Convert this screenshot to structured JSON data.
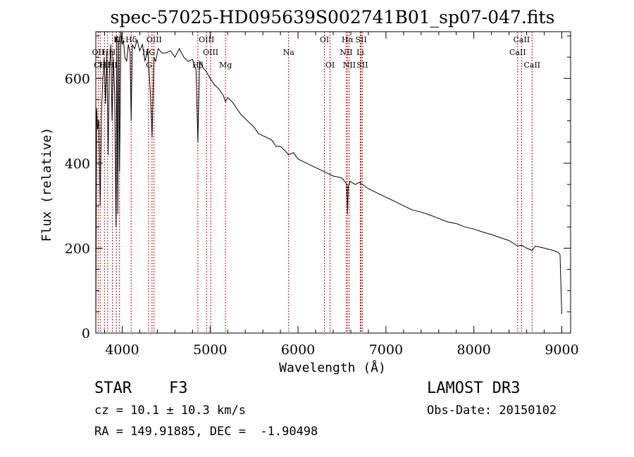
{
  "chart_data": {
    "type": "line",
    "title": "spec-57025-HD095639S002741B01_sp07-047.fits",
    "xlabel": "Wavelength (Å)",
    "ylabel": "Flux (relative)",
    "xlim": [
      3700,
      9100
    ],
    "ylim": [
      0,
      710
    ],
    "xticks": [
      4000,
      5000,
      6000,
      7000,
      8000,
      9000
    ],
    "xtick_labels": [
      "4000",
      "5000",
      "6000",
      "7000",
      "8000",
      "9000"
    ],
    "yticks": [
      0,
      200,
      400,
      600
    ],
    "ytick_labels": [
      "0",
      "200",
      "400",
      "600"
    ],
    "grid": false,
    "series": [
      {
        "name": "spectrum",
        "x": [
          3700,
          3710,
          3720,
          3735,
          3750,
          3765,
          3780,
          3795,
          3810,
          3825,
          3840,
          3855,
          3870,
          3885,
          3900,
          3915,
          3930,
          3940,
          3950,
          3960,
          3970,
          3985,
          4000,
          4015,
          4030,
          4050,
          4070,
          4090,
          4102,
          4115,
          4140,
          4170,
          4200,
          4230,
          4260,
          4290,
          4320,
          4340,
          4360,
          4380,
          4410,
          4450,
          4500,
          4550,
          4600,
          4650,
          4700,
          4750,
          4800,
          4840,
          4861,
          4880,
          4920,
          4960,
          5000,
          5050,
          5100,
          5150,
          5175,
          5200,
          5250,
          5300,
          5350,
          5400,
          5450,
          5500,
          5550,
          5600,
          5650,
          5700,
          5750,
          5800,
          5850,
          5893,
          5950,
          6000,
          6100,
          6200,
          6300,
          6350,
          6400,
          6450,
          6500,
          6540,
          6555,
          6563,
          6572,
          6590,
          6650,
          6700,
          6800,
          6900,
          7000,
          7100,
          7200,
          7300,
          7400,
          7500,
          7600,
          7700,
          7800,
          7900,
          8000,
          8100,
          8200,
          8300,
          8400,
          8498,
          8542,
          8600,
          8662,
          8700,
          8800,
          8900,
          8960,
          8980,
          8990,
          9000
        ],
        "values": [
          5,
          530,
          480,
          500,
          300,
          520,
          600,
          650,
          540,
          660,
          420,
          620,
          680,
          500,
          650,
          560,
          250,
          700,
          280,
          690,
          380,
          710,
          680,
          690,
          650,
          640,
          680,
          660,
          500,
          680,
          670,
          690,
          665,
          680,
          640,
          670,
          570,
          460,
          650,
          640,
          670,
          660,
          660,
          665,
          650,
          670,
          650,
          640,
          645,
          620,
          450,
          640,
          625,
          615,
          600,
          585,
          575,
          560,
          545,
          555,
          545,
          530,
          515,
          505,
          495,
          485,
          470,
          465,
          460,
          455,
          440,
          440,
          430,
          420,
          425,
          410,
          400,
          390,
          380,
          375,
          370,
          368,
          365,
          355,
          350,
          280,
          345,
          358,
          350,
          355,
          340,
          330,
          320,
          310,
          300,
          290,
          285,
          278,
          270,
          262,
          258,
          250,
          245,
          238,
          232,
          225,
          218,
          205,
          207,
          200,
          195,
          205,
          200,
          195,
          190,
          185,
          110,
          45
        ]
      }
    ],
    "line_markers": [
      {
        "label": "Hδ",
        "x": 4102,
        "row": 0
      },
      {
        "label": "K",
        "x": 3934,
        "row": 0
      },
      {
        "label": "Hε",
        "x": 3970,
        "row": 0
      },
      {
        "label": "OIII",
        "x": 4363,
        "row": 0
      },
      {
        "label": "OIII",
        "x": 4959,
        "row": 0
      },
      {
        "label": "OI",
        "x": 6300,
        "row": 0
      },
      {
        "label": "Hα",
        "x": 6563,
        "row": 0
      },
      {
        "label": "SII",
        "x": 6717,
        "row": 0
      },
      {
        "label": "CaII",
        "x": 8542,
        "row": 0
      },
      {
        "label": "OII",
        "x": 3727,
        "row": 1
      },
      {
        "label": "Hη",
        "x": 3835,
        "row": 1
      },
      {
        "label": "H",
        "x": 3889,
        "row": 1
      },
      {
        "label": "HG",
        "x": 4300,
        "row": 1
      },
      {
        "label": "OIII",
        "x": 5007,
        "row": 1
      },
      {
        "label": "Na",
        "x": 5893,
        "row": 1
      },
      {
        "label": "NII",
        "x": 6548,
        "row": 1
      },
      {
        "label": "Li",
        "x": 6708,
        "row": 1
      },
      {
        "label": "CaII",
        "x": 8498,
        "row": 1
      },
      {
        "label": "CH",
        "x": 3750,
        "row": 2
      },
      {
        "label": "Hθ",
        "x": 3798,
        "row": 2
      },
      {
        "label": "HI",
        "x": 3889,
        "row": 2
      },
      {
        "label": "G",
        "x": 4305,
        "row": 2
      },
      {
        "label": "Hβ",
        "x": 4861,
        "row": 2
      },
      {
        "label": "Mg",
        "x": 5175,
        "row": 2
      },
      {
        "label": "OI",
        "x": 6364,
        "row": 2
      },
      {
        "label": "NII",
        "x": 6583,
        "row": 2
      },
      {
        "label": "SII",
        "x": 6731,
        "row": 2
      },
      {
        "label": "CaII",
        "x": 8662,
        "row": 2
      }
    ],
    "marker_lines": [
      3727,
      3750,
      3798,
      3835,
      3889,
      3934,
      3970,
      4102,
      4300,
      4340,
      4363,
      4861,
      4959,
      5007,
      5175,
      5893,
      6300,
      6364,
      6548,
      6563,
      6583,
      6708,
      6717,
      6731,
      8498,
      8542,
      8662
    ]
  },
  "info": {
    "object_type": "STAR",
    "subclass": "F3",
    "survey": "LAMOST DR3",
    "cz_line": "cz = 10.1 ± 10.3 km/s",
    "obs_date": "Obs-Date: 20150102",
    "coords": "RA = 149.91885, DEC =  -1.90498"
  }
}
